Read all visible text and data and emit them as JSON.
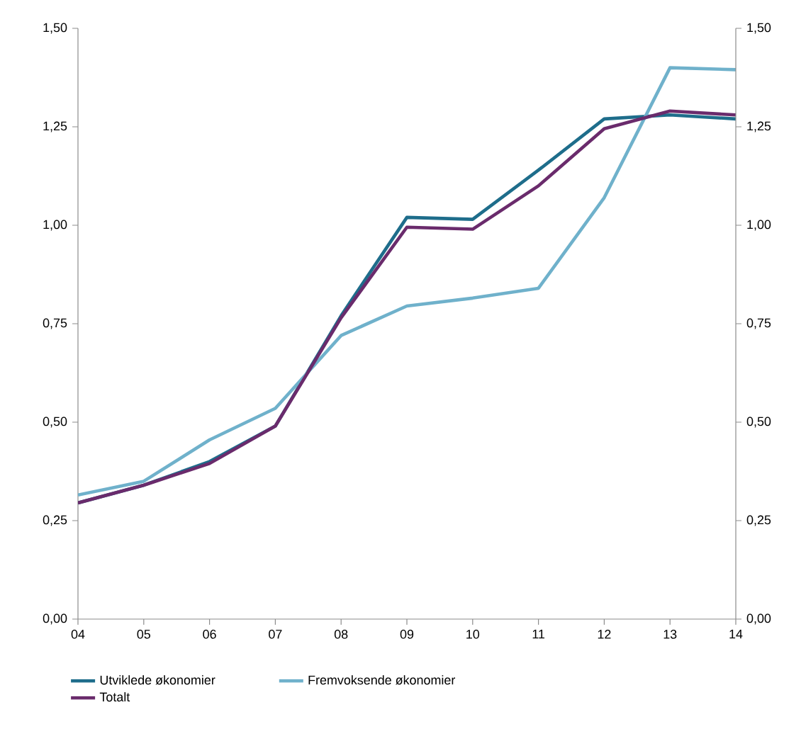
{
  "chart_data": {
    "type": "line",
    "categories": [
      "04",
      "05",
      "06",
      "07",
      "08",
      "09",
      "10",
      "11",
      "12",
      "13",
      "14"
    ],
    "series": [
      {
        "name": "Utviklede økonomier",
        "color": "#1e6d8b",
        "values": [
          0.295,
          0.34,
          0.4,
          0.49,
          0.77,
          1.02,
          1.015,
          1.14,
          1.27,
          1.28,
          1.27
        ]
      },
      {
        "name": "Fremvoksende økonomier",
        "color": "#6fb1cb",
        "values": [
          0.315,
          0.35,
          0.455,
          0.535,
          0.72,
          0.795,
          0.815,
          0.84,
          1.07,
          1.4,
          1.395
        ]
      },
      {
        "name": "Totalt",
        "color": "#6a2b6c",
        "values": [
          0.295,
          0.34,
          0.395,
          0.49,
          0.765,
          0.995,
          0.99,
          1.1,
          1.245,
          1.29,
          1.28
        ]
      }
    ],
    "ylim": [
      0,
      1.5
    ],
    "yticks": [
      {
        "value": 0,
        "label": "0,00"
      },
      {
        "value": 0.25,
        "label": "0,25"
      },
      {
        "value": 0.5,
        "label": "0,50"
      },
      {
        "value": 0.75,
        "label": "0,75"
      },
      {
        "value": 1.0,
        "label": "1,00"
      },
      {
        "value": 1.25,
        "label": "1,25"
      },
      {
        "value": 1.5,
        "label": "1,50"
      }
    ],
    "y2lim": [
      0,
      1.5
    ],
    "y2ticks": [
      {
        "value": 0,
        "label": "0,00"
      },
      {
        "value": 0.25,
        "label": "0,25"
      },
      {
        "value": 0.5,
        "label": "0,50"
      },
      {
        "value": 0.75,
        "label": "0,75"
      },
      {
        "value": 1.0,
        "label": "1,00"
      },
      {
        "value": 1.25,
        "label": "1,25"
      },
      {
        "value": 1.5,
        "label": "1,50"
      }
    ],
    "legend": "bottom",
    "grid": false
  }
}
